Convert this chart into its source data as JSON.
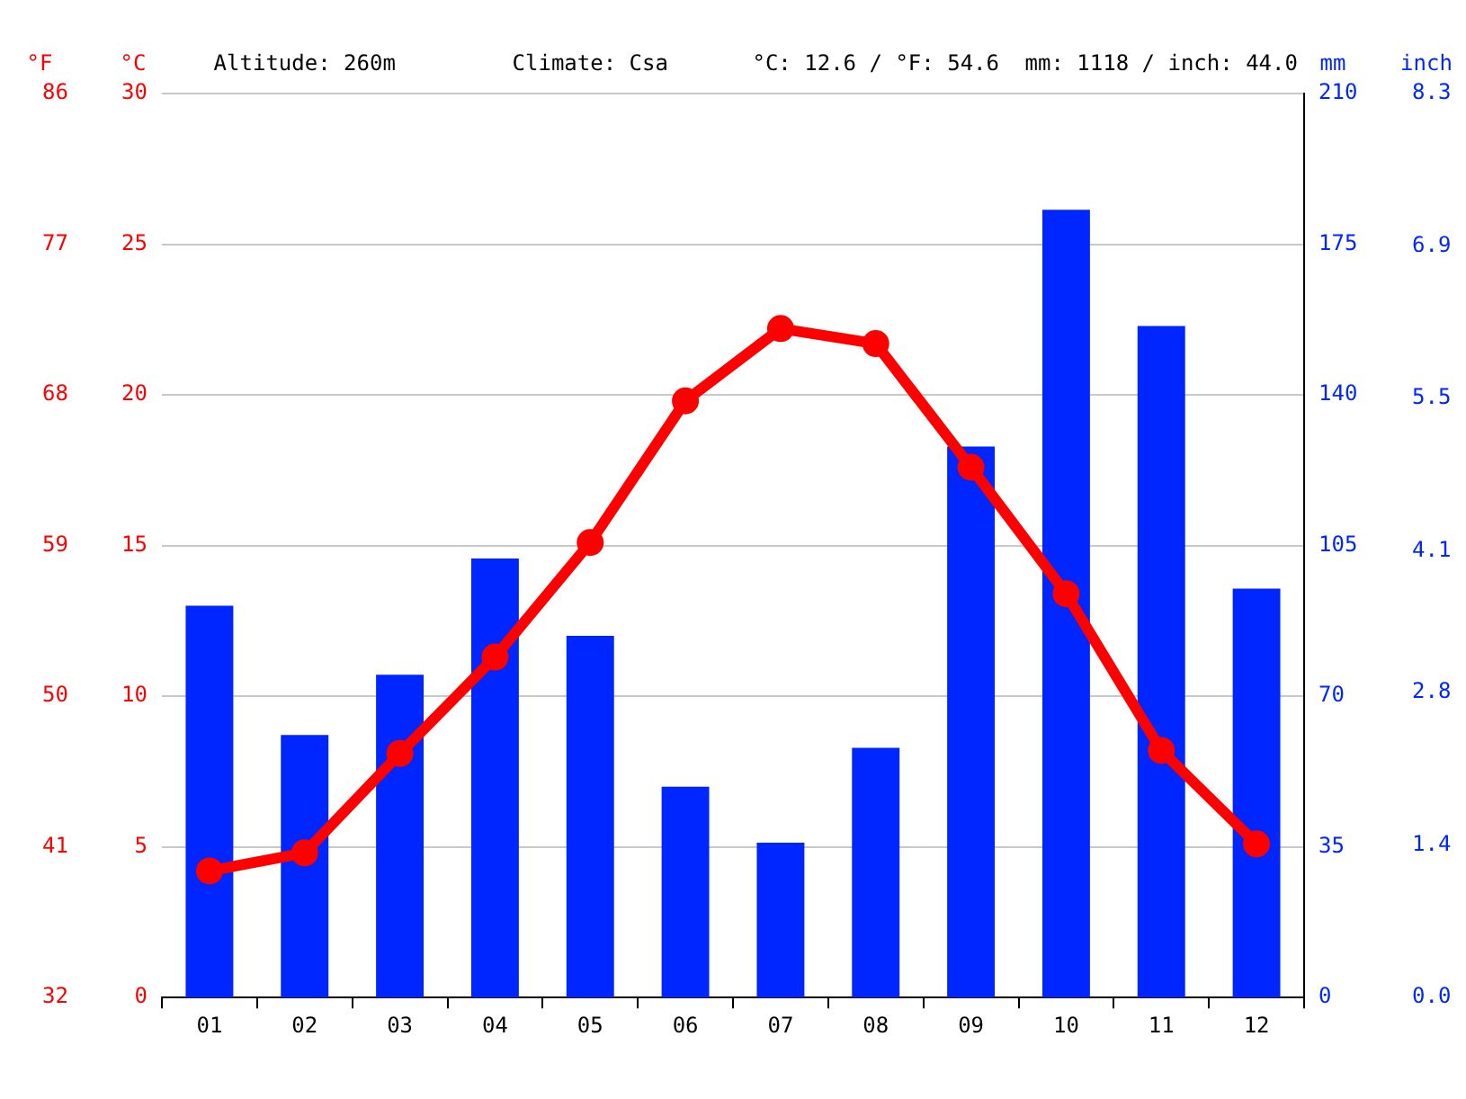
{
  "chart_data": {
    "type": "bar",
    "categories": [
      "01",
      "02",
      "03",
      "04",
      "05",
      "06",
      "07",
      "08",
      "09",
      "10",
      "11",
      "12"
    ],
    "series": [
      {
        "type": "line",
        "color": "#ff0000",
        "axis": "y",
        "marker": "circle",
        "values": [
          4.2,
          4.8,
          8.1,
          11.3,
          15.1,
          19.8,
          22.2,
          21.7,
          17.6,
          13.4,
          8.2,
          5.1
        ]
      },
      {
        "color": "#0026ff",
        "axis": "y2",
        "values": [
          91,
          61,
          75,
          102,
          84,
          49,
          36,
          58,
          128,
          183,
          156,
          95
        ]
      }
    ],
    "ylabel": "°C",
    "y2label": "mm",
    "y3label": "inch",
    "ylim": [
      0,
      30
    ],
    "yticks": [
      0,
      5,
      10,
      15,
      20,
      25,
      30
    ],
    "y2lim": [
      0,
      210
    ],
    "y2ticks": [
      0,
      35,
      70,
      105,
      140,
      175,
      210
    ],
    "y3lim": [
      0,
      8.3
    ],
    "y3ticks": [
      {
        "value": 0,
        "label": "0.0"
      },
      1.4,
      2.8,
      4.1,
      5.5,
      6.9,
      8.3
    ],
    "grid": "y",
    "annotations": [
      "Altitude: 260m",
      "Climate: Csa",
      "°C: 12.6 / °F: 54.6",
      "mm: 1118 / inch: 44.0",
      {
        "text": "°F"
      },
      "32",
      "41",
      "50",
      "59",
      "68",
      "77",
      "86"
    ]
  }
}
